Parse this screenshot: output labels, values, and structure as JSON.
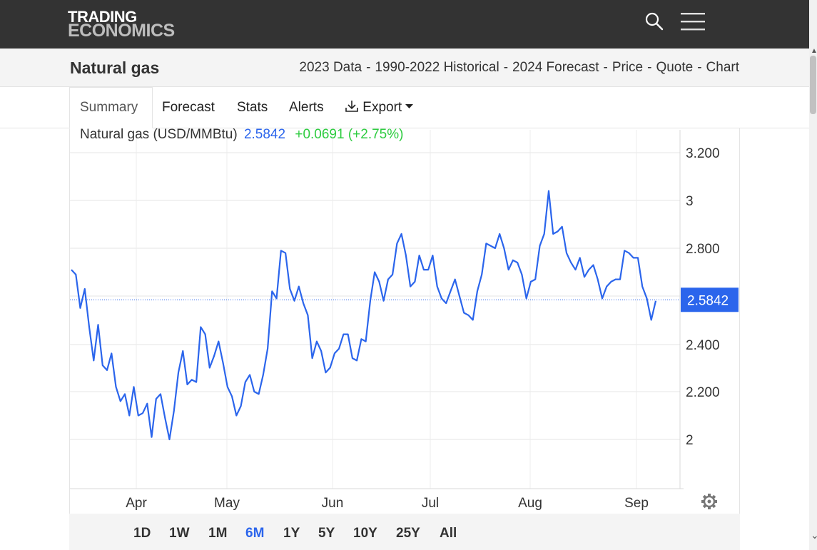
{
  "header": {
    "logo_line1": "TRADING",
    "logo_line2": "ECONOMICS",
    "search_icon": "search-icon",
    "menu_icon": "hamburger-menu-icon"
  },
  "title_bar": {
    "title": "Natural gas",
    "links": [
      "2023 Data",
      "1990-2022 Historical",
      "2024 Forecast",
      "Price",
      "Quote",
      "Chart"
    ],
    "separator": "-"
  },
  "tabs": [
    {
      "label": "Summary",
      "active": true
    },
    {
      "label": "Forecast"
    },
    {
      "label": "Stats"
    },
    {
      "label": "Alerts"
    },
    {
      "label": "Export",
      "icon": "download-icon",
      "caret": "caret-down-icon"
    }
  ],
  "quote": {
    "name": "Natural gas (USD/MMBtu)",
    "price": "2.5842",
    "change": "+0.0691 (+2.75%)"
  },
  "colors": {
    "line": "#2b65ec",
    "price_text": "#2b65ec",
    "change_text": "#2ecc40",
    "header_bg": "#333333",
    "last_price_badge": "#2b65ec"
  },
  "chart_data": {
    "type": "line",
    "series": [
      {
        "values": [
          2.71,
          2.69,
          2.55,
          2.63,
          2.47,
          2.33,
          2.48,
          2.31,
          2.29,
          2.36,
          2.22,
          2.16,
          2.19,
          2.1,
          2.22,
          2.1,
          2.11,
          2.15,
          2.01,
          2.17,
          2.19,
          2.09,
          2.0,
          2.12,
          2.28,
          2.37,
          2.23,
          2.25,
          2.24,
          2.47,
          2.44,
          2.3,
          2.35,
          2.41,
          2.32,
          2.22,
          2.18,
          2.1,
          2.14,
          2.24,
          2.27,
          2.2,
          2.19,
          2.27,
          2.38,
          2.62,
          2.59,
          2.79,
          2.78,
          2.63,
          2.58,
          2.64,
          2.57,
          2.52,
          2.34,
          2.41,
          2.37,
          2.28,
          2.3,
          2.36,
          2.38,
          2.44,
          2.44,
          2.34,
          2.33,
          2.42,
          2.41,
          2.58,
          2.7,
          2.66,
          2.58,
          2.67,
          2.69,
          2.82,
          2.86,
          2.77,
          2.64,
          2.66,
          2.77,
          2.71,
          2.71,
          2.77,
          2.64,
          2.59,
          2.57,
          2.62,
          2.67,
          2.6,
          2.53,
          2.52,
          2.5,
          2.62,
          2.69,
          2.82,
          2.81,
          2.8,
          2.86,
          2.8,
          2.71,
          2.75,
          2.74,
          2.69,
          2.59,
          2.66,
          2.67,
          2.81,
          2.86,
          3.04,
          2.86,
          2.87,
          2.89,
          2.78,
          2.74,
          2.71,
          2.76,
          2.68,
          2.71,
          2.73,
          2.67,
          2.59,
          2.64,
          2.66,
          2.67,
          2.67,
          2.79,
          2.78,
          2.76,
          2.76,
          2.64,
          2.59,
          2.5,
          2.58
        ]
      }
    ],
    "x_labels": [
      "Apr",
      "May",
      "Jun",
      "Jul",
      "Aug",
      "Sep"
    ],
    "y_ticks": [
      "3.200",
      "3",
      "2.800",
      "2.400",
      "2.200",
      "2"
    ],
    "ylim": [
      1.8,
      3.2
    ],
    "last_value": "2.5842",
    "grid": true,
    "axis_side": "right",
    "settings_icon": "gear-icon"
  },
  "ranges": [
    {
      "label": "1D"
    },
    {
      "label": "1W"
    },
    {
      "label": "1M"
    },
    {
      "label": "6M",
      "selected": true
    },
    {
      "label": "1Y"
    },
    {
      "label": "5Y"
    },
    {
      "label": "10Y"
    },
    {
      "label": "25Y"
    },
    {
      "label": "All"
    }
  ]
}
